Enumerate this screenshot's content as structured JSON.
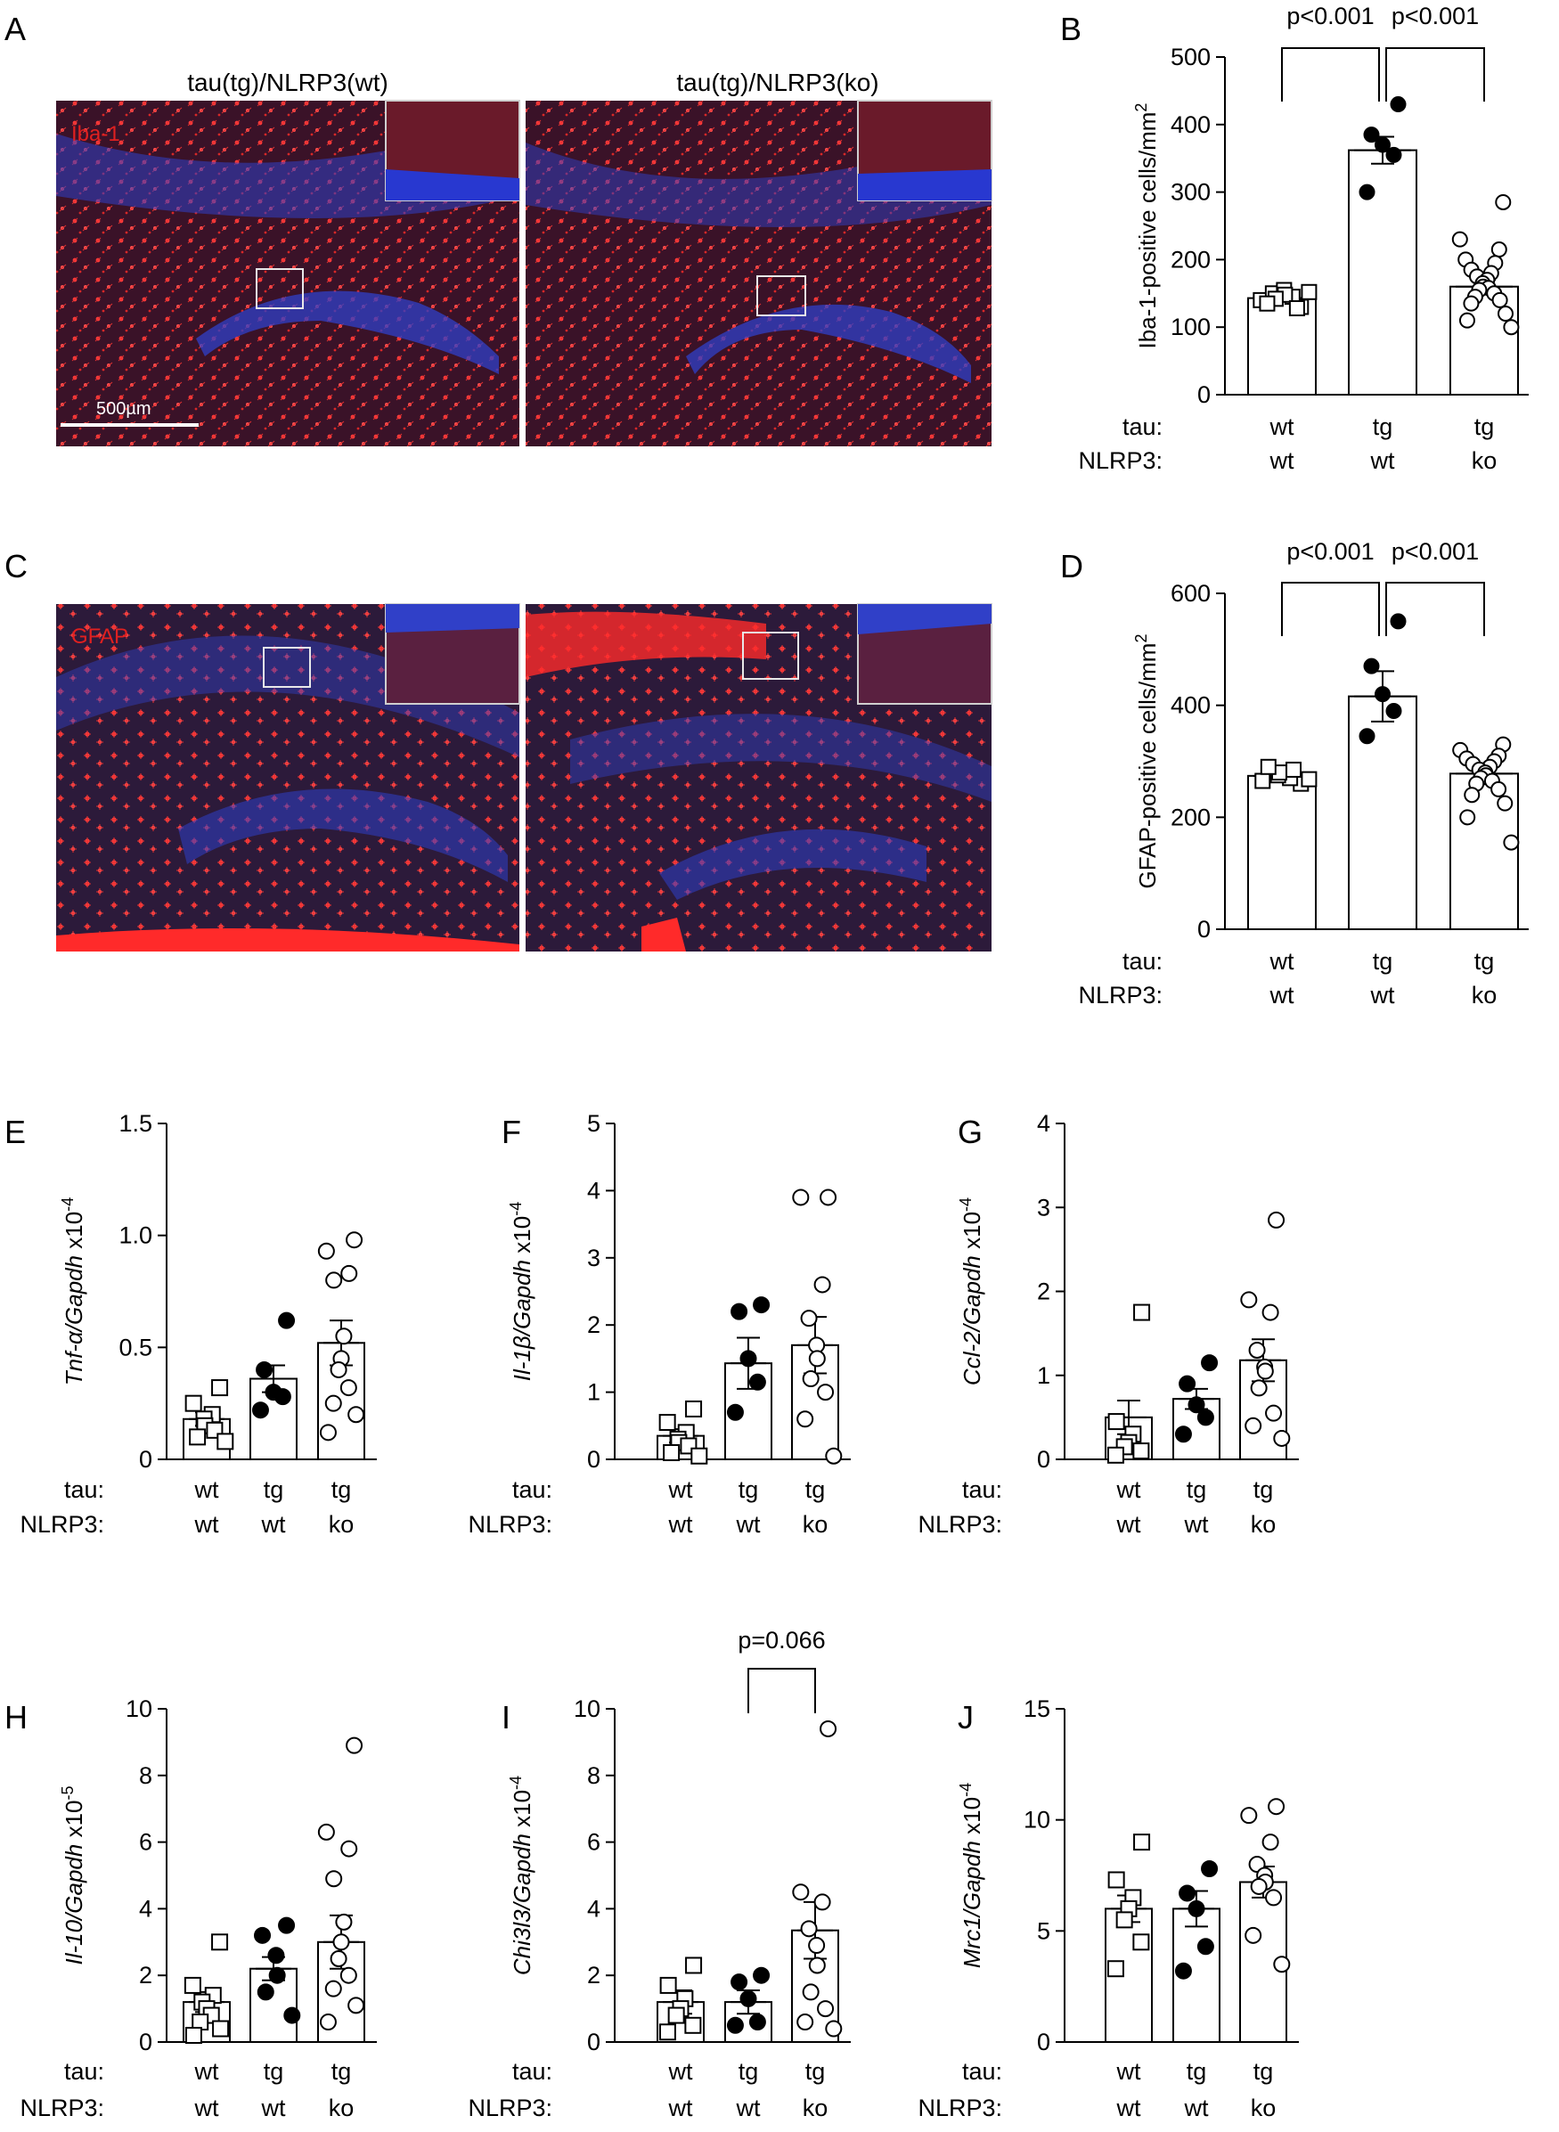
{
  "colors": {
    "micro_bg": "#3a1228",
    "micro_red": "#e32a2a",
    "micro_blue": "#3040c8",
    "inset_border": "#cfcfcf"
  },
  "micrographs": {
    "titles": [
      "tau(tg)/NLRP3(wt)",
      "tau(tg)/NLRP3(ko)"
    ],
    "panel_a": {
      "letter": "A",
      "stain": "Iba-1",
      "scale_bar": "500µm"
    },
    "panel_c": {
      "letter": "C",
      "stain": "GFAP"
    }
  },
  "row_labels": {
    "tau": "tau:",
    "nlrp3": "NLRP3:"
  },
  "chart_data": [
    {
      "id": "B",
      "type": "bar",
      "letter": "B",
      "categories": [
        {
          "tau": "wt",
          "nlrp3": "wt"
        },
        {
          "tau": "tg",
          "nlrp3": "wt"
        },
        {
          "tau": "tg",
          "nlrp3": "ko"
        }
      ],
      "ylabel_pre": "Iba-1-positive cells/mm",
      "ylabel_sup": "2",
      "ylim": [
        0,
        500
      ],
      "yticks": [
        0,
        100,
        200,
        300,
        400,
        500
      ],
      "means": [
        143,
        362,
        160
      ],
      "sem": [
        5,
        20,
        10
      ],
      "markers": [
        "square",
        "filled",
        "open"
      ],
      "points": [
        [
          130,
          140,
          145,
          150,
          155,
          148,
          142,
          128,
          135,
          152
        ],
        [
          430,
          385,
          370,
          355,
          300
        ],
        [
          285,
          230,
          215,
          200,
          195,
          185,
          180,
          175,
          170,
          165,
          160,
          158,
          155,
          150,
          145,
          140,
          135,
          120,
          110,
          100
        ]
      ],
      "sig": [
        {
          "from": 0,
          "to": 1,
          "text": "p<0.001"
        },
        {
          "from": 1,
          "to": 2,
          "text": "p<0.001"
        }
      ]
    },
    {
      "id": "D",
      "type": "bar",
      "letter": "D",
      "categories": [
        {
          "tau": "wt",
          "nlrp3": "wt"
        },
        {
          "tau": "tg",
          "nlrp3": "wt"
        },
        {
          "tau": "tg",
          "nlrp3": "ko"
        }
      ],
      "ylabel_pre": "GFAP-positive cells/mm",
      "ylabel_sup": "2",
      "ylim": [
        0,
        600
      ],
      "yticks": [
        0,
        200,
        400,
        600
      ],
      "means": [
        274,
        416,
        278
      ],
      "sem": [
        6,
        45,
        10
      ],
      "markers": [
        "square",
        "filled",
        "open"
      ],
      "points": [
        [
          260,
          265,
          270,
          275,
          280,
          285,
          290,
          268
        ],
        [
          550,
          470,
          420,
          390,
          345
        ],
        [
          330,
          320,
          310,
          305,
          300,
          295,
          290,
          285,
          280,
          275,
          270,
          265,
          260,
          250,
          240,
          225,
          200,
          155
        ]
      ],
      "sig": [
        {
          "from": 0,
          "to": 1,
          "text": "p<0.001"
        },
        {
          "from": 1,
          "to": 2,
          "text": "p<0.001"
        }
      ]
    },
    {
      "id": "E",
      "type": "bar",
      "letter": "E",
      "categories": [
        {
          "tau": "wt",
          "nlrp3": "wt"
        },
        {
          "tau": "tg",
          "nlrp3": "wt"
        },
        {
          "tau": "tg",
          "nlrp3": "ko"
        }
      ],
      "ylabel_gene": "Tnf-α/Gapdh",
      "ylabel_mult": " x10",
      "ylabel_sup": "-4",
      "ylim": [
        0,
        1.5
      ],
      "yticks": [
        0,
        0.5,
        1.0,
        1.5
      ],
      "ytick_labels": [
        "0",
        "0.5",
        "1.0",
        "1.5"
      ],
      "means": [
        0.18,
        0.36,
        0.52
      ],
      "sem": [
        0.03,
        0.06,
        0.1
      ],
      "markers": [
        "square",
        "filled",
        "open"
      ],
      "points": [
        [
          0.32,
          0.25,
          0.2,
          0.18,
          0.15,
          0.13,
          0.1,
          0.08
        ],
        [
          0.62,
          0.4,
          0.3,
          0.28,
          0.22
        ],
        [
          0.98,
          0.93,
          0.83,
          0.8,
          0.55,
          0.45,
          0.4,
          0.32,
          0.25,
          0.2,
          0.12
        ]
      ],
      "sig": []
    },
    {
      "id": "F",
      "type": "bar",
      "letter": "F",
      "categories": [
        {
          "tau": "wt",
          "nlrp3": "wt"
        },
        {
          "tau": "tg",
          "nlrp3": "wt"
        },
        {
          "tau": "tg",
          "nlrp3": "ko"
        }
      ],
      "ylabel_gene": "Il-1β/Gapdh",
      "ylabel_mult": " x10",
      "ylabel_sup": "-4",
      "ylim": [
        0,
        5
      ],
      "yticks": [
        0,
        1,
        2,
        3,
        4,
        5
      ],
      "means": [
        0.35,
        1.43,
        1.7
      ],
      "sem": [
        0.1,
        0.38,
        0.42
      ],
      "markers": [
        "square",
        "filled",
        "open"
      ],
      "points": [
        [
          0.75,
          0.55,
          0.4,
          0.3,
          0.25,
          0.2,
          0.1,
          0.05
        ],
        [
          2.3,
          2.2,
          1.5,
          1.15,
          0.7
        ],
        [
          3.9,
          3.9,
          2.6,
          2.1,
          1.7,
          1.5,
          1.2,
          1.0,
          0.6,
          0.05
        ]
      ],
      "sig": []
    },
    {
      "id": "G",
      "type": "bar",
      "letter": "G",
      "categories": [
        {
          "tau": "wt",
          "nlrp3": "wt"
        },
        {
          "tau": "tg",
          "nlrp3": "wt"
        },
        {
          "tau": "tg",
          "nlrp3": "ko"
        }
      ],
      "ylabel_gene": "Ccl-2/Gapdh",
      "ylabel_mult": " x10",
      "ylabel_sup": "-4",
      "ylim": [
        0,
        4
      ],
      "yticks": [
        0,
        1,
        2,
        3,
        4
      ],
      "means": [
        0.5,
        0.72,
        1.18
      ],
      "sem": [
        0.2,
        0.12,
        0.25
      ],
      "markers": [
        "square",
        "filled",
        "open"
      ],
      "points": [
        [
          1.75,
          0.45,
          0.3,
          0.2,
          0.15,
          0.1,
          0.05
        ],
        [
          1.15,
          0.9,
          0.65,
          0.5,
          0.3
        ],
        [
          2.85,
          1.9,
          1.75,
          1.3,
          1.1,
          1.05,
          0.85,
          0.55,
          0.4,
          0.25
        ]
      ],
      "sig": []
    },
    {
      "id": "H",
      "type": "bar",
      "letter": "H",
      "categories": [
        {
          "tau": "wt",
          "nlrp3": "wt"
        },
        {
          "tau": "tg",
          "nlrp3": "wt"
        },
        {
          "tau": "tg",
          "nlrp3": "ko"
        }
      ],
      "ylabel_gene": "Il-10/Gapdh",
      "ylabel_mult": " x10",
      "ylabel_sup": "-5",
      "ylim": [
        0,
        10
      ],
      "yticks": [
        0,
        2,
        4,
        6,
        8,
        10
      ],
      "means": [
        1.2,
        2.2,
        3.0
      ],
      "sem": [
        0.3,
        0.35,
        0.8
      ],
      "markers": [
        "square",
        "filled",
        "open"
      ],
      "points": [
        [
          3.0,
          1.7,
          1.4,
          1.2,
          1.0,
          0.8,
          0.6,
          0.4,
          0.2
        ],
        [
          3.5,
          3.2,
          2.6,
          2.0,
          1.5,
          0.8
        ],
        [
          8.9,
          6.3,
          5.8,
          4.9,
          3.6,
          3.0,
          2.5,
          2.0,
          1.6,
          1.1,
          0.6
        ]
      ],
      "sig": []
    },
    {
      "id": "I",
      "type": "bar",
      "letter": "I",
      "categories": [
        {
          "tau": "wt",
          "nlrp3": "wt"
        },
        {
          "tau": "tg",
          "nlrp3": "wt"
        },
        {
          "tau": "tg",
          "nlrp3": "ko"
        }
      ],
      "ylabel_gene": "Chi3l3/Gapdh",
      "ylabel_mult": " x10",
      "ylabel_sup": "-4",
      "ylim": [
        0,
        10
      ],
      "yticks": [
        0,
        2,
        4,
        6,
        8,
        10
      ],
      "means": [
        1.2,
        1.2,
        3.35
      ],
      "sem": [
        0.35,
        0.35,
        0.85
      ],
      "markers": [
        "square",
        "filled",
        "open"
      ],
      "points": [
        [
          2.3,
          1.7,
          1.3,
          1.0,
          0.8,
          0.5,
          0.3
        ],
        [
          2.0,
          1.8,
          1.3,
          0.6,
          0.5
        ],
        [
          9.4,
          4.5,
          4.2,
          3.4,
          2.9,
          2.3,
          1.5,
          1.0,
          0.6,
          0.4
        ]
      ],
      "sig": [
        {
          "from": 1,
          "to": 2,
          "text": "p=0.066"
        }
      ]
    },
    {
      "id": "J",
      "type": "bar",
      "letter": "J",
      "categories": [
        {
          "tau": "wt",
          "nlrp3": "wt"
        },
        {
          "tau": "tg",
          "nlrp3": "wt"
        },
        {
          "tau": "tg",
          "nlrp3": "ko"
        }
      ],
      "ylabel_gene": "Mrc1/Gapdh",
      "ylabel_mult": " x10",
      "ylabel_sup": "-4",
      "ylim": [
        0,
        15
      ],
      "yticks": [
        0,
        5,
        10,
        15
      ],
      "means": [
        6.0,
        6.0,
        7.2
      ],
      "sem": [
        0.6,
        0.8,
        0.7
      ],
      "markers": [
        "square",
        "filled",
        "open"
      ],
      "points": [
        [
          9.0,
          7.3,
          6.5,
          6.0,
          5.5,
          4.5,
          3.3
        ],
        [
          7.8,
          6.7,
          6.0,
          4.3,
          3.2
        ],
        [
          10.6,
          10.2,
          9.0,
          8.0,
          7.5,
          7.2,
          7.0,
          6.5,
          4.8,
          3.5
        ]
      ],
      "sig": []
    }
  ]
}
